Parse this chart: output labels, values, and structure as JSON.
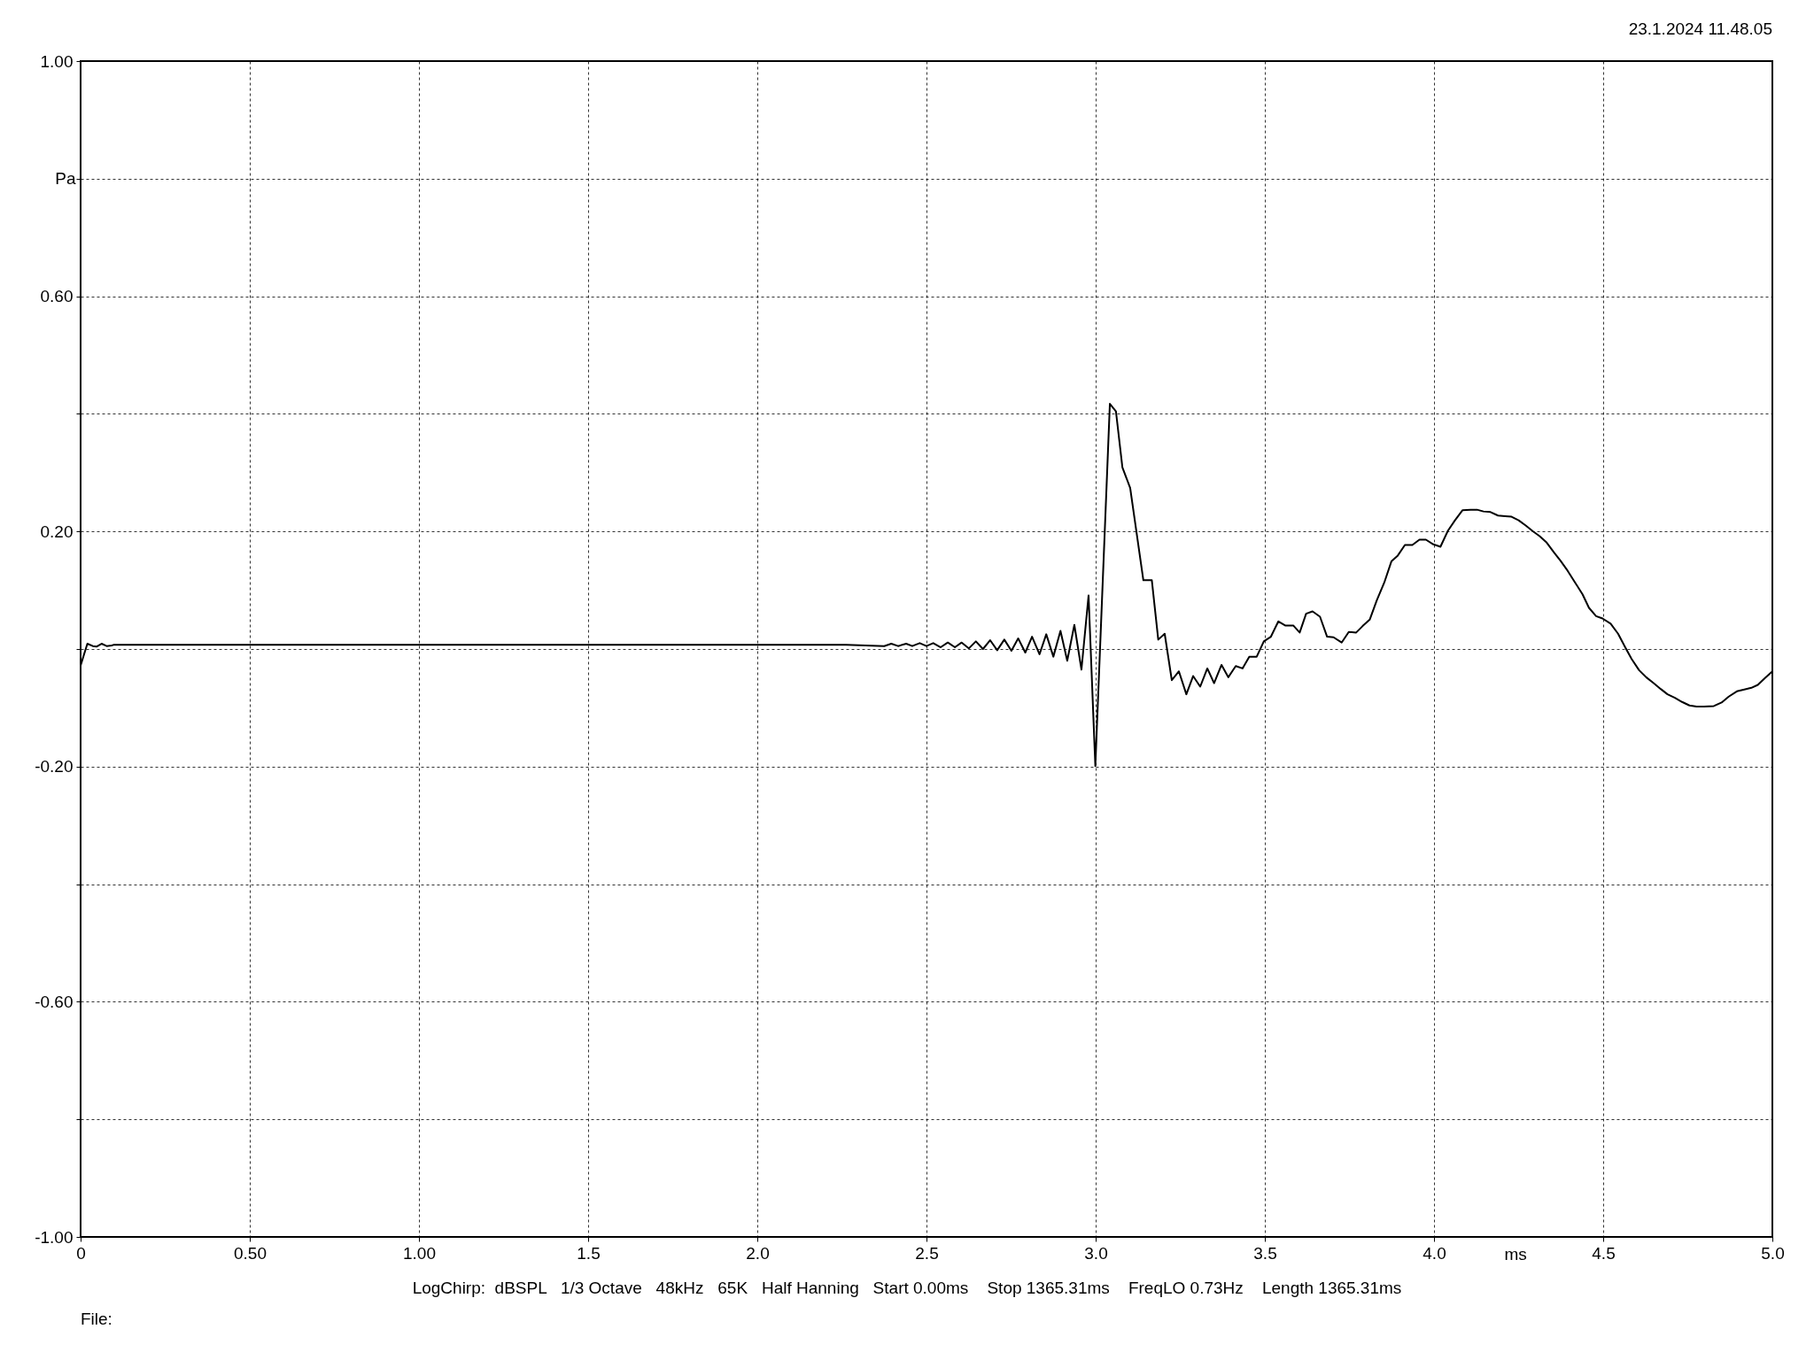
{
  "chart_data": {
    "type": "line",
    "xlabel": "ms",
    "ylabel": "Pa",
    "annotations": [
      "23.1.2024 11.48.05",
      "LogChirp:  dBSPL   1/3 Octave   48kHz   65K   Half Hanning   Start 0.00ms    Stop 1365.31ms    FreqLO 0.73Hz    Length 1365.31ms",
      "File:"
    ],
    "xlim": [
      0,
      5
    ],
    "ylim": [
      -1,
      1
    ],
    "xticks": [
      0,
      {
        "value": 0.5,
        "label": "0.50"
      },
      {
        "value": 1,
        "label": "1.00"
      },
      1.5,
      {
        "value": 2,
        "label": "2.0"
      },
      2.5,
      {
        "value": 3,
        "label": "3.0"
      },
      3.5,
      {
        "value": 4,
        "label": "4.0"
      },
      4.5,
      {
        "value": 5,
        "label": "5.0"
      }
    ],
    "yticks": [
      {
        "value": -1,
        "label": "-1.00"
      },
      {
        "value": -0.8,
        "label": null
      },
      {
        "value": -0.6,
        "label": "-0.60"
      },
      {
        "value": -0.4,
        "label": null
      },
      {
        "value": -0.2,
        "label": "-0.20"
      },
      {
        "value": 0,
        "label": null
      },
      {
        "value": 0.2,
        "label": "0.20"
      },
      {
        "value": 0.4,
        "label": null
      },
      {
        "value": 0.6,
        "label": "0.60"
      },
      {
        "value": 0.8,
        "label": null
      },
      {
        "value": 1,
        "label": "1.00"
      }
    ],
    "grid": true,
    "marker": "none",
    "line_style": "solid",
    "series": [
      {
        "color": "#000000",
        "x": [
          0,
          0.02,
          0.036,
          0.047,
          0.062,
          0.077,
          0.092,
          0.097,
          2.263,
          2.375,
          2.396,
          2.416,
          2.44,
          2.458,
          2.48,
          2.5,
          2.52,
          2.542,
          2.563,
          2.584,
          2.604,
          2.625,
          2.646,
          2.667,
          2.688,
          2.709,
          2.73,
          2.751,
          2.771,
          2.792,
          2.812,
          2.834,
          2.854,
          2.875,
          2.896,
          2.916,
          2.937,
          2.958,
          2.979,
          2.999,
          3.042,
          3.06,
          3.079,
          3.102,
          3.141,
          3.166,
          3.185,
          3.204,
          3.225,
          3.246,
          3.268,
          3.288,
          3.309,
          3.33,
          3.35,
          3.372,
          3.392,
          3.414,
          3.434,
          3.454,
          3.476,
          3.497,
          3.518,
          3.54,
          3.56,
          3.584,
          3.603,
          3.622,
          3.641,
          3.663,
          3.684,
          3.703,
          3.727,
          3.748,
          3.77,
          3.789,
          3.81,
          3.831,
          3.853,
          3.874,
          3.893,
          3.914,
          3.936,
          3.957,
          3.976,
          3.998,
          4.019,
          4.041,
          4.062,
          4.084,
          4.108,
          4.127,
          4.146,
          4.167,
          4.189,
          4.21,
          4.229,
          4.25,
          4.271,
          4.293,
          4.312,
          4.333,
          4.355,
          4.374,
          4.395,
          4.417,
          4.439,
          4.458,
          4.479,
          4.498,
          4.522,
          4.544,
          4.565,
          4.584,
          4.606,
          4.627,
          4.649,
          4.67,
          4.69,
          4.712,
          4.733,
          4.755,
          4.776,
          4.798,
          4.827,
          4.85,
          4.871,
          4.895,
          4.917,
          4.938,
          4.957,
          4.979,
          5.0
        ],
        "values": [
          -0.028,
          0.009,
          0.005,
          0.004,
          0.009,
          0.005,
          0.006,
          0.007,
          0.007,
          0.005,
          0.009,
          0.005,
          0.009,
          0.005,
          0.01,
          0.005,
          0.01,
          0.003,
          0.011,
          0.003,
          0.011,
          0.001,
          0.013,
          0,
          0.015,
          -0.002,
          0.016,
          -0.003,
          0.018,
          -0.006,
          0.021,
          -0.009,
          0.025,
          -0.013,
          0.031,
          -0.02,
          0.041,
          -0.035,
          0.091,
          -0.199,
          0.417,
          0.404,
          0.309,
          0.274,
          0.117,
          0.117,
          0.016,
          0.026,
          -0.053,
          -0.038,
          -0.077,
          -0.046,
          -0.064,
          -0.033,
          -0.058,
          -0.027,
          -0.048,
          -0.029,
          -0.033,
          -0.013,
          -0.013,
          0.013,
          0.021,
          0.047,
          0.04,
          0.04,
          0.028,
          0.06,
          0.064,
          0.055,
          0.021,
          0.02,
          0.011,
          0.029,
          0.028,
          0.039,
          0.05,
          0.083,
          0.113,
          0.149,
          0.159,
          0.177,
          0.177,
          0.186,
          0.186,
          0.178,
          0.174,
          0.201,
          0.219,
          0.236,
          0.237,
          0.237,
          0.234,
          0.233,
          0.227,
          0.226,
          0.225,
          0.219,
          0.21,
          0.2,
          0.192,
          0.181,
          0.164,
          0.15,
          0.133,
          0.113,
          0.093,
          0.07,
          0.056,
          0.052,
          0.043,
          0.026,
          0.003,
          -0.017,
          -0.036,
          -0.048,
          -0.058,
          -0.068,
          -0.077,
          -0.083,
          -0.09,
          -0.096,
          -0.098,
          -0.098,
          -0.097,
          -0.091,
          -0.081,
          -0.072,
          -0.069,
          -0.066,
          -0.061,
          -0.049,
          -0.038
        ]
      }
    ]
  }
}
